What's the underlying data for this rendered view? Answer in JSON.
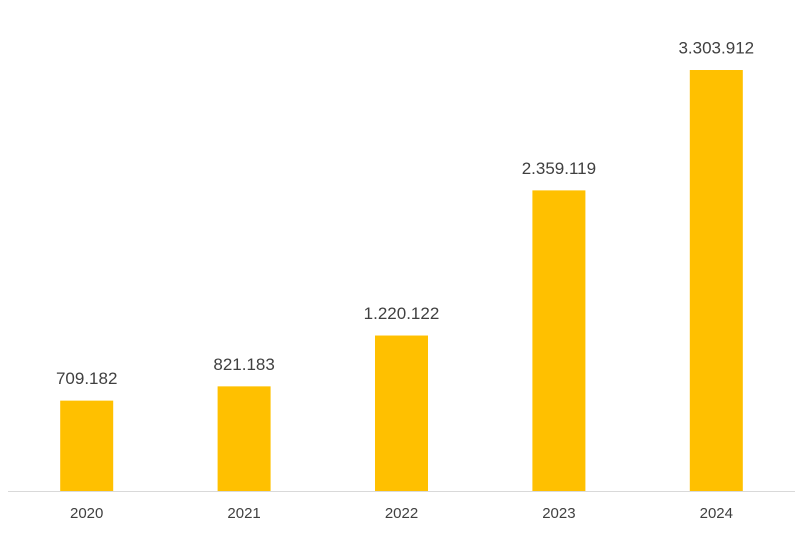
{
  "chart_data": {
    "type": "bar",
    "categories": [
      "2020",
      "2021",
      "2022",
      "2023",
      "2024"
    ],
    "values": [
      709182,
      821183,
      1220122,
      2359119,
      3303912
    ],
    "value_labels": [
      "709.182",
      "821.183",
      "1.220.122",
      "2.359.119",
      "3.303.912"
    ],
    "color": "#ffc000"
  }
}
